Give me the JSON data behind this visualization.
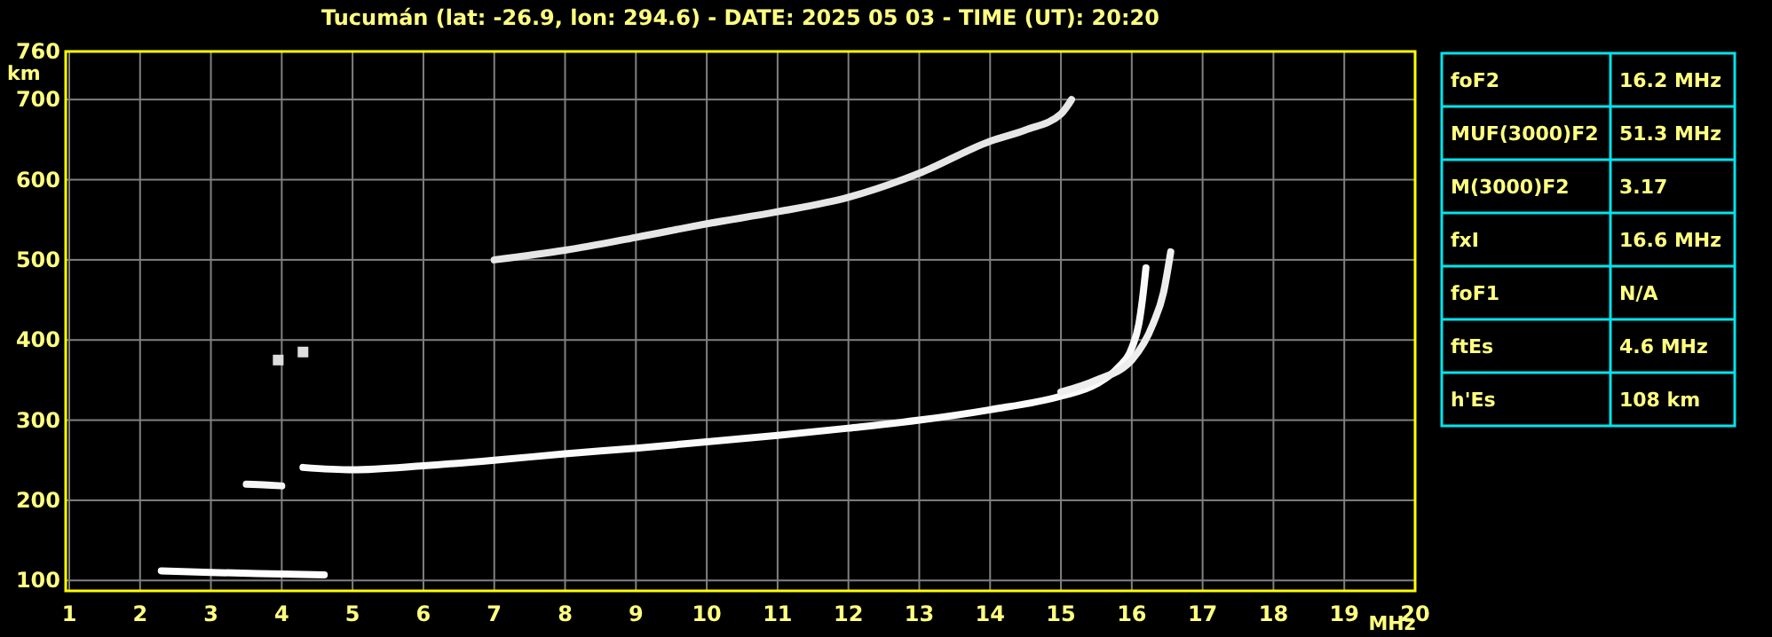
{
  "chart_data": [
    {
      "type": "line",
      "title": "Tucumán (lat: -26.9, lon: 294.6) - DATE: 2025 05 03 - TIME (UT): 20:20",
      "xlabel": "MHz",
      "ylabel": "km",
      "xlim": [
        0.95,
        20
      ],
      "ylim": [
        87,
        760
      ],
      "xticks": [
        1,
        2,
        3,
        4,
        5,
        6,
        7,
        8,
        9,
        10,
        11,
        12,
        13,
        14,
        15,
        16,
        17,
        18,
        19,
        20
      ],
      "yticks": [
        100,
        200,
        300,
        400,
        500,
        600,
        700,
        760
      ],
      "grid": true,
      "line_style": "solid",
      "marker": "none",
      "series": [
        {
          "color": "#ffffff",
          "x": [
            2.3,
            3,
            4,
            4.6
          ],
          "values": [
            112,
            110,
            108,
            107
          ]
        },
        {
          "color": "#f4f4f4",
          "x": [
            3.5,
            3.8,
            4
          ],
          "values": [
            220,
            219,
            218
          ]
        },
        {
          "color": "#fafafa",
          "x": [
            4.3,
            5,
            6,
            7,
            8,
            9,
            10,
            11,
            12,
            13,
            14,
            15,
            15.5,
            15.8,
            16,
            16.1,
            16.15,
            16.2
          ],
          "values": [
            241,
            238,
            243,
            250,
            258,
            265,
            273,
            281,
            290,
            300,
            313,
            330,
            345,
            365,
            390,
            420,
            450,
            490
          ]
        },
        {
          "color": "#eeeeee",
          "x": [
            15,
            15.5,
            16,
            16.3,
            16.45,
            16.55
          ],
          "values": [
            335,
            350,
            375,
            420,
            460,
            510
          ]
        },
        {
          "color": "#e6e6e6",
          "x": [
            7,
            8,
            9,
            10,
            11,
            12,
            13,
            14,
            14.5,
            15,
            15.15
          ],
          "values": [
            500,
            512,
            528,
            545,
            560,
            578,
            608,
            648,
            662,
            682,
            700
          ]
        },
        {
          "type": "scatter",
          "marker": "square",
          "color": "#dddddd",
          "x": [
            3.95,
            4.3
          ],
          "values": [
            375,
            385
          ]
        }
      ]
    },
    {
      "type": "other",
      "categories": [
        "foF2",
        "MUF(3000)F2",
        "M(3000)F2",
        "fxI",
        "foF1",
        "ftEs",
        "h'Es"
      ],
      "value_labels": [
        "16.2 MHz",
        "51.3 MHz",
        "3.17",
        "16.6 MHz",
        "N/A",
        "4.6 MHz",
        "108 km"
      ]
    }
  ]
}
